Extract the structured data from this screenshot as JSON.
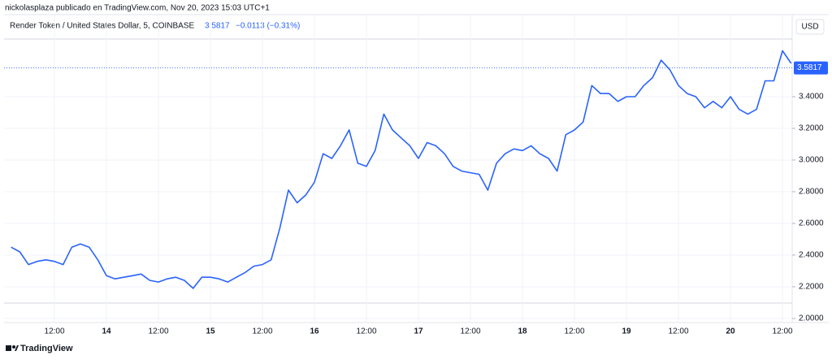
{
  "chart_data": {
    "type": "line",
    "publisher": "nickolasplaza publicado en TradingView.com, Nov 20, 2023 15:03 UTC+1",
    "title": "Render Token / United States Dollar, 5, COINBASE",
    "last_price": 3.5817,
    "last_price_label": "3.5817",
    "change": "−0.0113 (−0.31%)",
    "currency": "USD",
    "brand": "TradingView",
    "color": "#2962ff",
    "grid": true,
    "categories": [
      null,
      null,
      null,
      null,
      null,
      "12:00",
      null,
      null,
      null,
      null,
      null,
      "14",
      null,
      null,
      null,
      null,
      null,
      "12:00",
      null,
      null,
      null,
      null,
      null,
      "15",
      null,
      null,
      null,
      null,
      null,
      "12:00",
      null,
      null,
      null,
      null,
      null,
      "16",
      null,
      null,
      null,
      null,
      null,
      "12:00",
      null,
      null,
      null,
      null,
      null,
      "17",
      null,
      null,
      null,
      null,
      null,
      "12:00",
      null,
      null,
      null,
      null,
      null,
      "18",
      null,
      null,
      null,
      null,
      null,
      "12:00",
      null,
      null,
      null,
      null,
      null,
      "19",
      null,
      null,
      null,
      null,
      null,
      "12:00",
      null,
      null,
      null,
      null,
      null,
      "20",
      null,
      null,
      null,
      null,
      null,
      "12:00",
      null
    ],
    "values": [
      2.45,
      2.42,
      2.34,
      2.36,
      2.37,
      2.36,
      2.34,
      2.45,
      2.47,
      2.45,
      2.37,
      2.27,
      2.25,
      2.26,
      2.27,
      2.28,
      2.24,
      2.23,
      2.25,
      2.26,
      2.24,
      2.19,
      2.26,
      2.26,
      2.25,
      2.23,
      2.26,
      2.29,
      2.33,
      2.34,
      2.37,
      2.57,
      2.81,
      2.73,
      2.78,
      2.86,
      3.04,
      3.01,
      3.09,
      3.19,
      2.98,
      2.96,
      3.06,
      3.29,
      3.19,
      3.14,
      3.09,
      3.01,
      3.11,
      3.09,
      3.04,
      2.96,
      2.93,
      2.92,
      2.91,
      2.81,
      2.98,
      3.04,
      3.07,
      3.06,
      3.09,
      3.04,
      3.01,
      2.93,
      3.16,
      3.19,
      3.24,
      3.47,
      3.42,
      3.42,
      3.37,
      3.4,
      3.4,
      3.47,
      3.52,
      3.63,
      3.57,
      3.47,
      3.42,
      3.4,
      3.33,
      3.37,
      3.33,
      3.4,
      3.32,
      3.29,
      3.32,
      3.5,
      3.5,
      3.69,
      3.61
    ],
    "ylim": [
      1.974,
      3.918
    ],
    "yticks": [
      {
        "value": 2.0,
        "label": "2.0000"
      },
      {
        "value": 2.2,
        "label": "2.2000"
      },
      {
        "value": 2.4,
        "label": "2.4000"
      },
      {
        "value": 2.6,
        "label": "2.6000"
      },
      {
        "value": 2.8,
        "label": "2.8000"
      },
      {
        "value": 3.0,
        "label": "3.0000"
      },
      {
        "value": 3.2,
        "label": "3.2000"
      },
      {
        "value": 3.4,
        "label": "3.4000"
      }
    ]
  }
}
